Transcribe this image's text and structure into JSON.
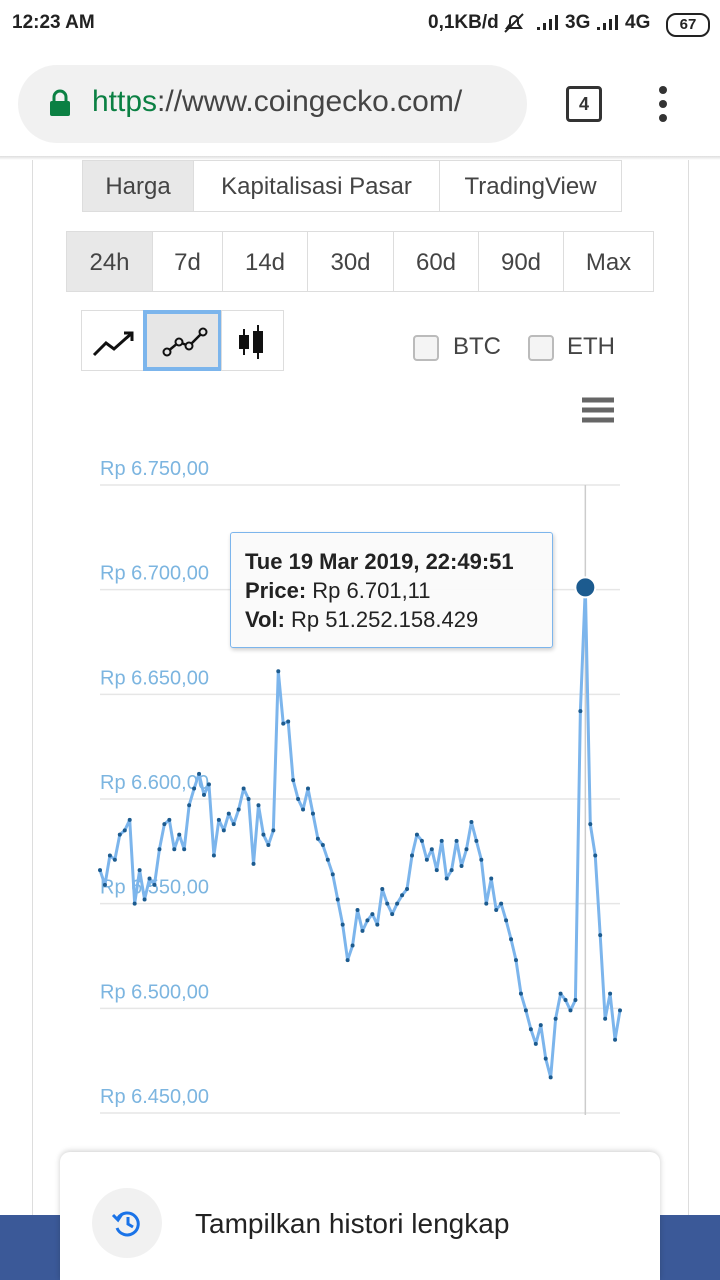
{
  "status_bar": {
    "time": "12:23 AM",
    "speed": "0,1KB/d",
    "net1": "3G",
    "net2": "4G",
    "battery": "67"
  },
  "browser": {
    "url_scheme": "https",
    "url_rest": "://www.coingecko.com/",
    "tab_count": "4"
  },
  "tabs": [
    "Harga",
    "Kapitalisasi Pasar",
    "TradingView"
  ],
  "ranges": [
    "24h",
    "7d",
    "14d",
    "30d",
    "60d",
    "90d",
    "Max"
  ],
  "compare": [
    "BTC",
    "ETH"
  ],
  "tooltip": {
    "date": "Tue 19 Mar 2019, 22:49:51",
    "price_label": "Price:",
    "price": "Rp 6.701,11",
    "vol_label": "Vol:",
    "vol": "Rp 51.252.158.429"
  },
  "chart_data": {
    "type": "line",
    "color": "#7cb5ec",
    "marker_color": "#1c5b8f",
    "grid": true,
    "ylim": [
      6450,
      6750
    ],
    "yticks": [
      {
        "value": 6450,
        "label": "Rp 6.450,00"
      },
      {
        "value": 6500,
        "label": "Rp 6.500,00"
      },
      {
        "value": 6550,
        "label": "Rp 6.550,00"
      },
      {
        "value": 6600,
        "label": "Rp 6.600,00"
      },
      {
        "value": 6650,
        "label": "Rp 6.650,00"
      },
      {
        "value": 6700,
        "label": "Rp 6.700,00"
      },
      {
        "value": 6750,
        "label": "Rp 6.750,00"
      }
    ],
    "values": [
      6566,
      6559,
      6573,
      6571,
      6583,
      6585,
      6590,
      6550,
      6566,
      6552,
      6562,
      6559,
      6576,
      6588,
      6590,
      6576,
      6583,
      6576,
      6597,
      6605,
      6612,
      6602,
      6607,
      6573,
      6590,
      6585,
      6593,
      6588,
      6595,
      6605,
      6600,
      6569,
      6597,
      6583,
      6578,
      6585,
      6661,
      6636,
      6637,
      6609,
      6600,
      6595,
      6605,
      6593,
      6581,
      6578,
      6571,
      6564,
      6552,
      6540,
      6523,
      6530,
      6547,
      6537,
      6542,
      6545,
      6540,
      6557,
      6550,
      6545,
      6550,
      6554,
      6557,
      6573,
      6583,
      6580,
      6571,
      6576,
      6566,
      6580,
      6562,
      6566,
      6580,
      6568,
      6576,
      6589,
      6580,
      6571,
      6550,
      6562,
      6547,
      6550,
      6542,
      6533,
      6523,
      6507,
      6499,
      6490,
      6483,
      6492,
      6476,
      6467,
      6495,
      6507,
      6504,
      6499,
      6504,
      6642,
      6701.11,
      6588,
      6573,
      6535,
      6495,
      6507,
      6485,
      6499
    ]
  },
  "footer": {
    "button": "Tampilkan histori lengkap"
  }
}
